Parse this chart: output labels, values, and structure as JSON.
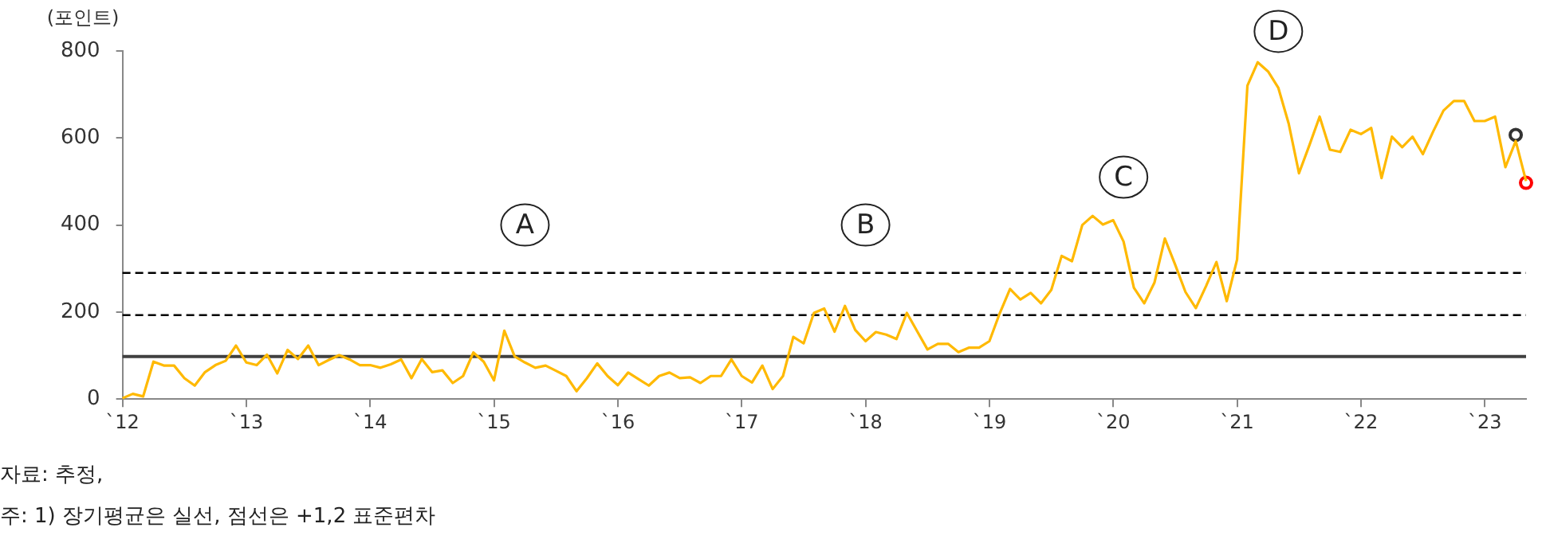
{
  "chart_data": {
    "type": "line",
    "ylabel": "(포인트)",
    "x": [
      "2012-01",
      "2012-02",
      "2012-03",
      "2012-04",
      "2012-05",
      "2012-06",
      "2012-07",
      "2012-08",
      "2012-09",
      "2012-10",
      "2012-11",
      "2012-12",
      "2013-01",
      "2013-02",
      "2013-03",
      "2013-04",
      "2013-05",
      "2013-06",
      "2013-07",
      "2013-08",
      "2013-09",
      "2013-10",
      "2013-11",
      "2013-12",
      "2014-01",
      "2014-02",
      "2014-03",
      "2014-04",
      "2014-05",
      "2014-06",
      "2014-07",
      "2014-08",
      "2014-09",
      "2014-10",
      "2014-11",
      "2014-12",
      "2015-01",
      "2015-02",
      "2015-03",
      "2015-04",
      "2015-05",
      "2015-06",
      "2015-07",
      "2015-08",
      "2015-09",
      "2015-10",
      "2015-11",
      "2015-12",
      "2016-01",
      "2016-02",
      "2016-03",
      "2016-04",
      "2016-05",
      "2016-06",
      "2016-07",
      "2016-08",
      "2016-09",
      "2016-10",
      "2016-11",
      "2016-12",
      "2017-01",
      "2017-02",
      "2017-03",
      "2017-04",
      "2017-05",
      "2017-06",
      "2017-07",
      "2017-08",
      "2017-09",
      "2017-10",
      "2017-11",
      "2017-12",
      "2018-01",
      "2018-02",
      "2018-03",
      "2018-04",
      "2018-05",
      "2018-06",
      "2018-07",
      "2018-08",
      "2018-09",
      "2018-10",
      "2018-11",
      "2018-12",
      "2019-01",
      "2019-02",
      "2019-03",
      "2019-04",
      "2019-05",
      "2019-06",
      "2019-07",
      "2019-08",
      "2019-09",
      "2019-10",
      "2019-11",
      "2019-12",
      "2020-01",
      "2020-02",
      "2020-03",
      "2020-04",
      "2020-05",
      "2020-06",
      "2020-07",
      "2020-08",
      "2020-09",
      "2020-10",
      "2020-11",
      "2020-12",
      "2021-01",
      "2021-02",
      "2021-03",
      "2021-04",
      "2021-05",
      "2021-06",
      "2021-07",
      "2021-08",
      "2021-09",
      "2021-10",
      "2021-11",
      "2021-12",
      "2022-01",
      "2022-02",
      "2022-03",
      "2022-04",
      "2022-05",
      "2022-06",
      "2022-07",
      "2022-08",
      "2022-09",
      "2022-10",
      "2022-11",
      "2022-12",
      "2023-01",
      "2023-02",
      "2023-03",
      "2023-04",
      "2023-05"
    ],
    "series": [
      {
        "type": "line",
        "color": "#ffb900",
        "marker": "none",
        "values": [
          2,
          12,
          6,
          86,
          77,
          77,
          48,
          31,
          62,
          78,
          88,
          123,
          84,
          78,
          102,
          59,
          113,
          92,
          123,
          78,
          90,
          101,
          91,
          78,
          78,
          72,
          80,
          91,
          48,
          92,
          62,
          66,
          37,
          53,
          107,
          86,
          43,
          157,
          98,
          84,
          72,
          77,
          65,
          53,
          18,
          48,
          82,
          53,
          32,
          61,
          46,
          31,
          53,
          61,
          48,
          50,
          37,
          53,
          53,
          91,
          53,
          38,
          77,
          23,
          53,
          143,
          128,
          198,
          208,
          155,
          214,
          159,
          133,
          154,
          148,
          138,
          198,
          156,
          114,
          127,
          127,
          108,
          118,
          118,
          133,
          197,
          253,
          229,
          244,
          220,
          251,
          329,
          317,
          400,
          421,
          401,
          411,
          362,
          256,
          220,
          268,
          369,
          309,
          246,
          209,
          260,
          315,
          225,
          321,
          720,
          774,
          753,
          715,
          633,
          519,
          583,
          649,
          573,
          568,
          619,
          609,
          623,
          508,
          603,
          579,
          603,
          563,
          615,
          663,
          685,
          685,
          639,
          639,
          649,
          533,
          593,
          501
        ]
      },
      {
        "type": "scatter",
        "color": "#333333",
        "marker": "circle",
        "x": [
          "2023-04"
        ],
        "values": [
          607
        ]
      },
      {
        "type": "scatter",
        "color": "#ff0000",
        "marker": "circle",
        "x": [
          "2023-05"
        ],
        "values": [
          497
        ]
      }
    ],
    "xlim": [
      "2012-01",
      "2023-05"
    ],
    "xticks": [
      {
        "value": "2012",
        "label": "`12"
      },
      {
        "value": "2013",
        "label": "`13"
      },
      {
        "value": "2014",
        "label": "`14"
      },
      {
        "value": "2015",
        "label": "`15"
      },
      {
        "value": "2016",
        "label": "`16"
      },
      {
        "value": "2017",
        "label": "`17"
      },
      {
        "value": "2018",
        "label": "`18"
      },
      {
        "value": "2019",
        "label": "`19"
      },
      {
        "value": "2020",
        "label": "`20"
      },
      {
        "value": "2021",
        "label": "`21"
      },
      {
        "value": "2022",
        "label": "`22"
      },
      {
        "value": "2023",
        "label": "`23"
      }
    ],
    "ylim": [
      0,
      800
    ],
    "yticks": [
      0,
      200,
      400,
      600,
      800
    ],
    "grid": false,
    "legend": false,
    "ref_lines": [
      {
        "axis": "y",
        "value": 98,
        "color": "#404040",
        "line_style": "solid"
      },
      {
        "axis": "y",
        "value": 193,
        "color": "#000000",
        "line_style": "dashed"
      },
      {
        "axis": "y",
        "value": 290,
        "color": "#000000",
        "line_style": "dashed"
      }
    ],
    "annotations": [
      {
        "text": "A",
        "x": "2015-04",
        "y": 400
      },
      {
        "text": "B",
        "x": "2018-01",
        "y": 400
      },
      {
        "text": "C",
        "x": "2020-02",
        "y": 510
      },
      {
        "text": "D",
        "x": "2021-05",
        "y": 845
      },
      "자료: 추정,",
      "주: 1) 장기평균은 실선, 점선은 +1,2 표준편차"
    ]
  }
}
